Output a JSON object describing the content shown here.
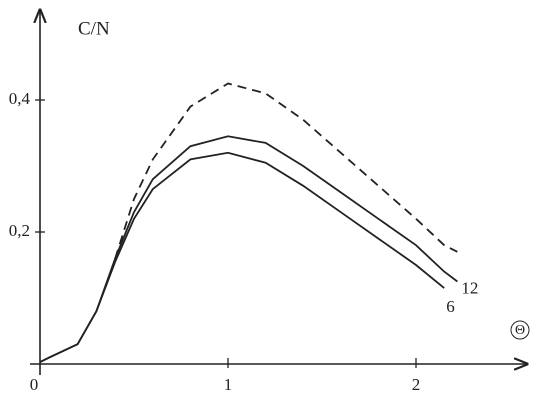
{
  "chart_data": {
    "type": "line",
    "y_label": "C/N",
    "x_label": "Θ",
    "x": [
      0,
      0.05,
      0.2,
      0.3,
      0.4,
      0.5,
      0.6,
      0.8,
      1.0,
      1.2,
      1.4,
      1.6,
      1.8,
      2.0,
      2.15,
      2.22
    ],
    "series": [
      {
        "name": "12",
        "color": "#222",
        "dash": false,
        "values": [
          0.003,
          0.01,
          0.03,
          0.08,
          0.16,
          0.23,
          0.28,
          0.33,
          0.345,
          0.335,
          0.3,
          0.26,
          0.22,
          0.18,
          0.14,
          0.125
        ]
      },
      {
        "name": "6",
        "color": "#222",
        "dash": false,
        "values": [
          0.003,
          0.01,
          0.03,
          0.08,
          0.155,
          0.22,
          0.265,
          0.31,
          0.32,
          0.305,
          0.27,
          0.23,
          0.19,
          0.15,
          0.115,
          null
        ]
      },
      {
        "color": "#222",
        "dash": true,
        "values": [
          null,
          null,
          null,
          null,
          0.16,
          0.25,
          0.31,
          0.39,
          0.425,
          0.41,
          0.37,
          0.32,
          0.27,
          0.22,
          0.18,
          0.17
        ]
      }
    ],
    "xlim": [
      0,
      2.55
    ],
    "ylim": [
      0,
      0.53
    ],
    "xticks": [
      0,
      1,
      2
    ],
    "yticks": [
      {
        "value": 0.2,
        "label": "0,2"
      },
      {
        "value": 0.4,
        "label": "0,4"
      }
    ]
  }
}
